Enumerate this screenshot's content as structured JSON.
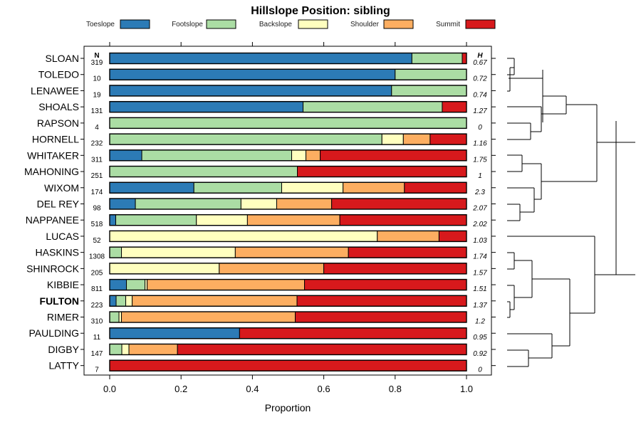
{
  "chart_data": {
    "type": "bar",
    "orientation": "horizontal",
    "stacked": true,
    "title": "Hillslope Position: sibling",
    "xlabel": "Proportion",
    "ylabel": "",
    "xlim": [
      0,
      1
    ],
    "xticks": [
      "0.0",
      "0.2",
      "0.4",
      "0.6",
      "0.8",
      "1.0"
    ],
    "n_header": "N",
    "h_header": "H",
    "legend_position": "top",
    "series": [
      {
        "name": "Toeslope",
        "color": "#2c7bb6"
      },
      {
        "name": "Footslope",
        "color": "#abdda4"
      },
      {
        "name": "Backslope",
        "color": "#ffffbf"
      },
      {
        "name": "Shoulder",
        "color": "#fdae61"
      },
      {
        "name": "Summit",
        "color": "#d7191c"
      }
    ],
    "rows": [
      {
        "label": "SLOAN",
        "n": "319",
        "h": "0.67",
        "values": [
          0.847,
          0.141,
          0,
          0,
          0.012
        ]
      },
      {
        "label": "TOLEDO",
        "n": "10",
        "h": "0.72",
        "values": [
          0.8,
          0.2,
          0,
          0,
          0
        ]
      },
      {
        "label": "LENAWEE",
        "n": "19",
        "h": "0.74",
        "values": [
          0.79,
          0.21,
          0,
          0,
          0
        ]
      },
      {
        "label": "SHOALS",
        "n": "131",
        "h": "1.27",
        "values": [
          0.542,
          0.39,
          0,
          0,
          0.068
        ]
      },
      {
        "label": "RAPSON",
        "n": "4",
        "h": "0",
        "values": [
          0,
          1,
          0,
          0,
          0
        ]
      },
      {
        "label": "HORNELL",
        "n": "232",
        "h": "1.16",
        "values": [
          0,
          0.763,
          0.06,
          0.075,
          0.102
        ]
      },
      {
        "label": "WHITAKER",
        "n": "311",
        "h": "1.75",
        "values": [
          0.09,
          0.42,
          0.04,
          0.04,
          0.41
        ]
      },
      {
        "label": "MAHONING",
        "n": "251",
        "h": "1",
        "values": [
          0,
          0.526,
          0,
          0,
          0.474
        ]
      },
      {
        "label": "WIXOM",
        "n": "174",
        "h": "2.3",
        "values": [
          0.236,
          0.246,
          0.172,
          0.172,
          0.174
        ]
      },
      {
        "label": "DEL REY",
        "n": "98",
        "h": "2.07",
        "values": [
          0.072,
          0.296,
          0.1,
          0.154,
          0.378
        ]
      },
      {
        "label": "NAPPANEE",
        "n": "518",
        "h": "2.02",
        "values": [
          0.017,
          0.226,
          0.143,
          0.259,
          0.355
        ]
      },
      {
        "label": "LUCAS",
        "n": "52",
        "h": "1.03",
        "values": [
          0,
          0,
          0.75,
          0.173,
          0.077
        ]
      },
      {
        "label": "HASKINS",
        "n": "1308",
        "h": "1.74",
        "values": [
          0,
          0.033,
          0.319,
          0.317,
          0.331
        ]
      },
      {
        "label": "SHINROCK",
        "n": "205",
        "h": "1.57",
        "values": [
          0,
          0,
          0.307,
          0.293,
          0.4
        ]
      },
      {
        "label": "KIBBIE",
        "n": "811",
        "h": "1.51",
        "values": [
          0.047,
          0.052,
          0.006,
          0.441,
          0.454
        ]
      },
      {
        "label": "FULTON",
        "n": "223",
        "h": "1.37",
        "values": [
          0.018,
          0.027,
          0.018,
          0.462,
          0.475
        ],
        "bold": true
      },
      {
        "label": "RIMER",
        "n": "310",
        "h": "1.2",
        "values": [
          0,
          0.026,
          0.007,
          0.487,
          0.48
        ]
      },
      {
        "label": "PAULDING",
        "n": "11",
        "h": "0.95",
        "values": [
          0.364,
          0,
          0,
          0,
          0.636
        ]
      },
      {
        "label": "DIGBY",
        "n": "147",
        "h": "0.92",
        "values": [
          0,
          0.034,
          0.02,
          0.136,
          0.81
        ]
      },
      {
        "label": "LATTY",
        "n": "7",
        "h": "0",
        "values": [
          0,
          0,
          0,
          0,
          1
        ]
      }
    ],
    "dendrogram": "hierarchical clustering tree of the 20 rows"
  }
}
